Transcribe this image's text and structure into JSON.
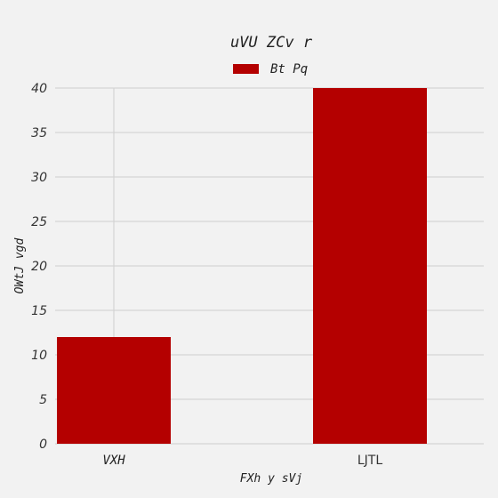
{
  "chart_data": {
    "type": "bar",
    "title": "uVU  ZCv r",
    "xlabel": "FXh y sVj",
    "ylabel": "OWtJ vgd",
    "categories": [
      "VXH",
      "LJTL"
    ],
    "series": [
      {
        "name": "Bt Pq",
        "values": [
          12,
          40
        ]
      }
    ],
    "ylim": [
      0,
      40
    ],
    "yticks": [
      "0",
      "5",
      "10",
      "15",
      "20",
      "25",
      "30",
      "35",
      "40"
    ],
    "grid": true,
    "legend_position": "top-center",
    "colors": {
      "bar": "#b40000",
      "background": "#f2f2f2",
      "grid": "#cfcfcf"
    }
  }
}
